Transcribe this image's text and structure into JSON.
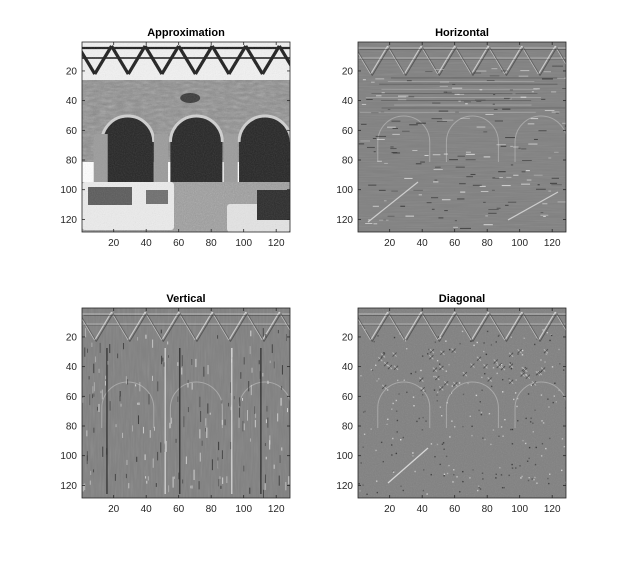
{
  "chart_data": [
    {
      "type": "heatmap",
      "title": "Approximation",
      "content": "image (grayscale) — building facade with arches and parked cars",
      "colormap": "gray",
      "xlim": [
        0.5,
        128.5
      ],
      "ylim": [
        0.5,
        128.5
      ],
      "y_reversed": true,
      "xticks": [
        20,
        40,
        60,
        80,
        100,
        120
      ],
      "yticks": [
        20,
        40,
        60,
        80,
        100,
        120
      ],
      "xlabel": "",
      "ylabel": ""
    },
    {
      "type": "heatmap",
      "title": "Horizontal",
      "content": "horizontal detail coefficients (mostly mid-gray, edge structure of truss and arches)",
      "colormap": "gray",
      "xlim": [
        0.5,
        128.5
      ],
      "ylim": [
        0.5,
        128.5
      ],
      "y_reversed": true,
      "xticks": [
        20,
        40,
        60,
        80,
        100,
        120
      ],
      "yticks": [
        20,
        40,
        60,
        80,
        100,
        120
      ],
      "xlabel": "",
      "ylabel": ""
    },
    {
      "type": "heatmap",
      "title": "Vertical",
      "content": "vertical detail coefficients (mostly mid-gray, vertical edges of columns and truss)",
      "colormap": "gray",
      "xlim": [
        0.5,
        128.5
      ],
      "ylim": [
        0.5,
        128.5
      ],
      "y_reversed": true,
      "xticks": [
        20,
        40,
        60,
        80,
        100,
        120
      ],
      "yticks": [
        20,
        40,
        60,
        80,
        100,
        120
      ],
      "xlabel": "",
      "ylabel": ""
    },
    {
      "type": "heatmap",
      "title": "Diagonal",
      "content": "diagonal detail coefficients (mostly mid-gray, fine diagonal texture)",
      "colormap": "gray",
      "xlim": [
        0.5,
        128.5
      ],
      "ylim": [
        0.5,
        128.5
      ],
      "y_reversed": true,
      "xticks": [
        20,
        40,
        60,
        80,
        100,
        120
      ],
      "yticks": [
        20,
        40,
        60,
        80,
        100,
        120
      ],
      "xlabel": "",
      "ylabel": ""
    }
  ],
  "colors": {
    "background": "#ffffff",
    "axes_frame": "#262626",
    "detail_base_gray": "#808080"
  }
}
